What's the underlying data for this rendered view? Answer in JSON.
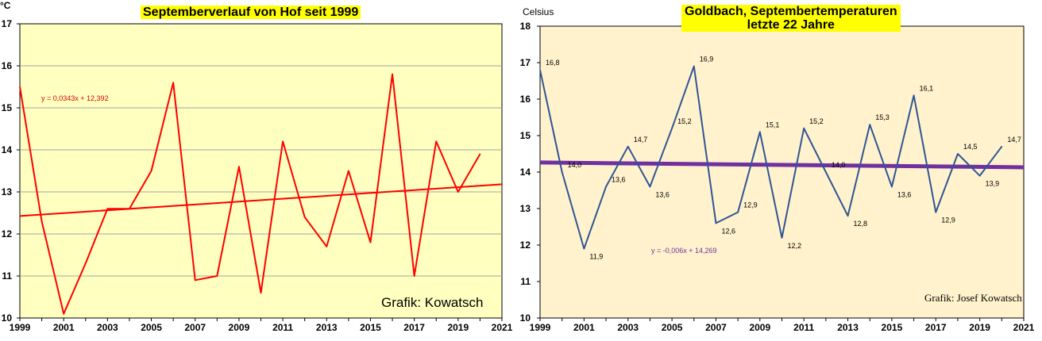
{
  "chart_data": [
    {
      "type": "line",
      "title": "Septemberverlauf von Hof seit 1999",
      "ylabel": "°C",
      "xlabel": "",
      "ylim": [
        10,
        17
      ],
      "xlim": [
        1999,
        2021
      ],
      "yticks": [
        10,
        11,
        12,
        13,
        14,
        15,
        16,
        17
      ],
      "xticks": [
        1999,
        2001,
        2003,
        2005,
        2007,
        2009,
        2011,
        2013,
        2015,
        2017,
        2019,
        2021
      ],
      "grid": true,
      "x": [
        1999,
        2000,
        2001,
        2002,
        2003,
        2004,
        2005,
        2006,
        2007,
        2008,
        2009,
        2010,
        2011,
        2012,
        2013,
        2014,
        2015,
        2016,
        2017,
        2018,
        2019,
        2020
      ],
      "series": [
        {
          "values": [
            15.5,
            12.3,
            10.1,
            11.3,
            12.6,
            12.6,
            13.5,
            15.6,
            10.9,
            11.0,
            13.6,
            10.6,
            14.2,
            12.4,
            11.7,
            13.5,
            11.8,
            15.8,
            11.0,
            14.2,
            13.0,
            13.9
          ],
          "color": "#ff0000"
        }
      ],
      "trendline": {
        "slope": 0.0343,
        "intercept": 12.392,
        "label": "y = 0,0343x + 12,392",
        "color": "#ff0000"
      },
      "annotation": "Grafik: Kowatsch",
      "background": "#ffffc0"
    },
    {
      "type": "line",
      "title": "Goldbach, Septembertemperaturen letzte 22 Jahre",
      "title_lines": [
        "Goldbach, Septembertemperaturen",
        "letzte 22 Jahre"
      ],
      "ylabel": "Celsius",
      "xlabel": "",
      "ylim": [
        10,
        18
      ],
      "xlim": [
        1999,
        2021
      ],
      "yticks": [
        10,
        11,
        12,
        13,
        14,
        15,
        16,
        17,
        18
      ],
      "xticks": [
        1999,
        2001,
        2003,
        2005,
        2007,
        2009,
        2011,
        2013,
        2015,
        2017,
        2019,
        2021
      ],
      "grid": false,
      "x": [
        1999,
        2000,
        2001,
        2002,
        2003,
        2004,
        2005,
        2006,
        2007,
        2008,
        2009,
        2010,
        2011,
        2012,
        2013,
        2014,
        2015,
        2016,
        2017,
        2018,
        2019,
        2020
      ],
      "series": [
        {
          "values": [
            16.8,
            14.0,
            11.9,
            13.6,
            14.7,
            13.6,
            15.2,
            16.9,
            12.6,
            12.9,
            15.1,
            12.2,
            15.2,
            14.0,
            12.8,
            15.3,
            13.6,
            16.1,
            12.9,
            14.5,
            13.9,
            14.7
          ],
          "color": "#2f5597"
        }
      ],
      "data_labels": [
        "16,8",
        "14,0",
        "11,9",
        "13,6",
        "14,7",
        "13,6",
        "15,2",
        "16,9",
        "12,6",
        "12,9",
        "15,1",
        "12,2",
        "15,2",
        "14,0",
        "12,8",
        "15,3",
        "13,6",
        "16,1",
        "12,9",
        "14,5",
        "13,9",
        "14,7"
      ],
      "trendline": {
        "slope": -0.006,
        "intercept": 14.269,
        "label": "y = -0,006x + 14,269",
        "color": "#7030a0"
      },
      "annotation": "Grafik: Josef Kowatsch",
      "background": "#fff2cc"
    }
  ]
}
